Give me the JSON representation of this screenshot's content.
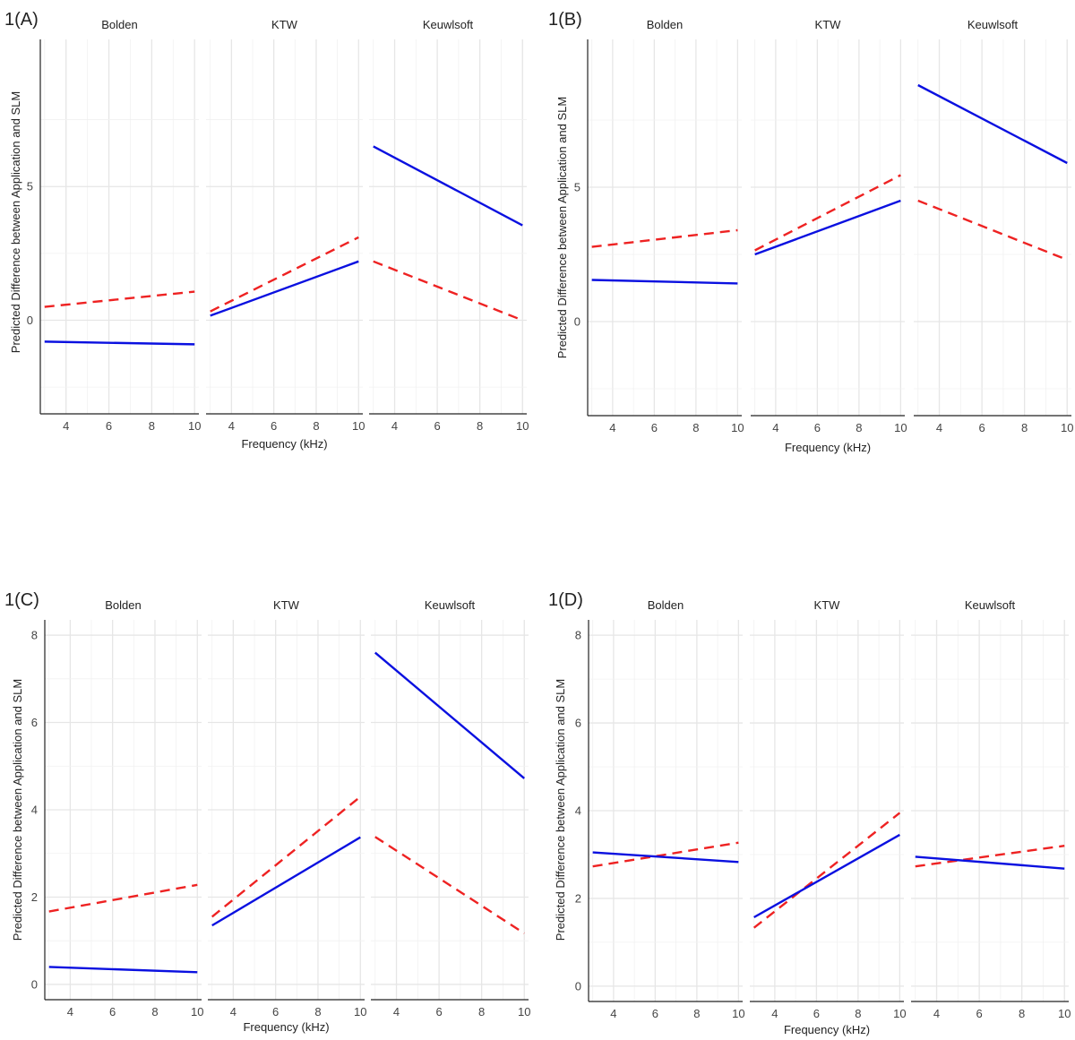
{
  "colors": {
    "solid": "#0a10e0",
    "dashed": "#ee2222"
  },
  "chart_data": [
    {
      "panel_label": "1(A)",
      "type": "line",
      "xlabel": "Frequency (kHz)",
      "ylabel": "Predicted Difference between Application and SLM",
      "ylim": [
        -3.5,
        10.5
      ],
      "yticks": [
        0,
        5
      ],
      "xlim": [
        2.8,
        10.2
      ],
      "xticks": [
        4,
        6,
        8,
        10
      ],
      "xtick_labels": [
        "4",
        "6",
        "8",
        "10"
      ],
      "facets": [
        {
          "name": "Bolden",
          "solid": {
            "x": [
              3,
              10
            ],
            "y": [
              -0.8,
              -0.9
            ]
          },
          "dashed": {
            "x": [
              3,
              10
            ],
            "y": [
              0.5,
              1.07
            ]
          }
        },
        {
          "name": "KTW",
          "solid": {
            "x": [
              3,
              10
            ],
            "y": [
              0.17,
              2.2
            ]
          },
          "dashed": {
            "x": [
              3,
              10
            ],
            "y": [
              0.33,
              3.1
            ]
          }
        },
        {
          "name": "Keuwlsoft",
          "solid": {
            "x": [
              3,
              10
            ],
            "y": [
              6.5,
              3.55
            ]
          },
          "dashed": {
            "x": [
              3,
              10
            ],
            "y": [
              2.2,
              0.0
            ]
          }
        }
      ]
    },
    {
      "panel_label": "1(B)",
      "type": "line",
      "xlabel": "Frequency (kHz)",
      "ylabel": "Predicted Difference between Application and SLM",
      "ylim": [
        -3.5,
        10.5
      ],
      "yticks": [
        0,
        5
      ],
      "xlim": [
        2.8,
        10.2
      ],
      "xticks": [
        4,
        6,
        8,
        10
      ],
      "xtick_labels": [
        "4",
        "6",
        "8",
        "10"
      ],
      "facets": [
        {
          "name": "Bolden",
          "solid": {
            "x": [
              3,
              10
            ],
            "y": [
              1.55,
              1.42
            ]
          },
          "dashed": {
            "x": [
              3,
              10
            ],
            "y": [
              2.78,
              3.4
            ]
          }
        },
        {
          "name": "KTW",
          "solid": {
            "x": [
              3,
              10
            ],
            "y": [
              2.5,
              4.5
            ]
          },
          "dashed": {
            "x": [
              3,
              10
            ],
            "y": [
              2.65,
              5.45
            ]
          }
        },
        {
          "name": "Keuwlsoft",
          "solid": {
            "x": [
              3,
              10
            ],
            "y": [
              8.8,
              5.9
            ]
          },
          "dashed": {
            "x": [
              3,
              10
            ],
            "y": [
              4.5,
              2.3
            ]
          }
        }
      ]
    },
    {
      "panel_label": "1(C)",
      "type": "line",
      "xlabel": "Frequency (kHz)",
      "ylabel": "Predicted Difference between Application and SLM",
      "ylim": [
        -0.35,
        8.35
      ],
      "yticks": [
        0,
        2,
        4,
        6,
        8
      ],
      "xlim": [
        2.8,
        10.2
      ],
      "xticks": [
        4,
        6,
        8,
        10
      ],
      "xtick_labels": [
        "4",
        "6",
        "8",
        "10"
      ],
      "facets": [
        {
          "name": "Bolden",
          "solid": {
            "x": [
              3,
              10
            ],
            "y": [
              0.4,
              0.28
            ]
          },
          "dashed": {
            "x": [
              3,
              10
            ],
            "y": [
              1.67,
              2.28
            ]
          }
        },
        {
          "name": "KTW",
          "solid": {
            "x": [
              3,
              10
            ],
            "y": [
              1.35,
              3.37
            ]
          },
          "dashed": {
            "x": [
              3,
              10
            ],
            "y": [
              1.55,
              4.3
            ]
          }
        },
        {
          "name": "Keuwlsoft",
          "solid": {
            "x": [
              3,
              10
            ],
            "y": [
              7.6,
              4.72
            ]
          },
          "dashed": {
            "x": [
              3,
              10
            ],
            "y": [
              3.38,
              1.17
            ]
          }
        }
      ]
    },
    {
      "panel_label": "1(D)",
      "type": "line",
      "xlabel": "Frequency (kHz)",
      "ylabel": "Predicted Difference between Application and SLM",
      "ylim": [
        -0.35,
        8.35
      ],
      "yticks": [
        0,
        2,
        4,
        6,
        8
      ],
      "xlim": [
        2.8,
        10.2
      ],
      "xticks": [
        4,
        6,
        8,
        10
      ],
      "xtick_labels": [
        "4",
        "6",
        "8",
        "10"
      ],
      "facets": [
        {
          "name": "Bolden",
          "solid": {
            "x": [
              3,
              10
            ],
            "y": [
              3.05,
              2.83
            ]
          },
          "dashed": {
            "x": [
              3,
              10
            ],
            "y": [
              2.73,
              3.27
            ]
          }
        },
        {
          "name": "KTW",
          "solid": {
            "x": [
              3,
              10
            ],
            "y": [
              1.57,
              3.45
            ]
          },
          "dashed": {
            "x": [
              3,
              10
            ],
            "y": [
              1.33,
              3.95
            ]
          }
        },
        {
          "name": "Keuwlsoft",
          "solid": {
            "x": [
              3,
              10
            ],
            "y": [
              2.95,
              2.68
            ]
          },
          "dashed": {
            "x": [
              3,
              10
            ],
            "y": [
              2.73,
              3.2
            ]
          }
        }
      ]
    }
  ]
}
